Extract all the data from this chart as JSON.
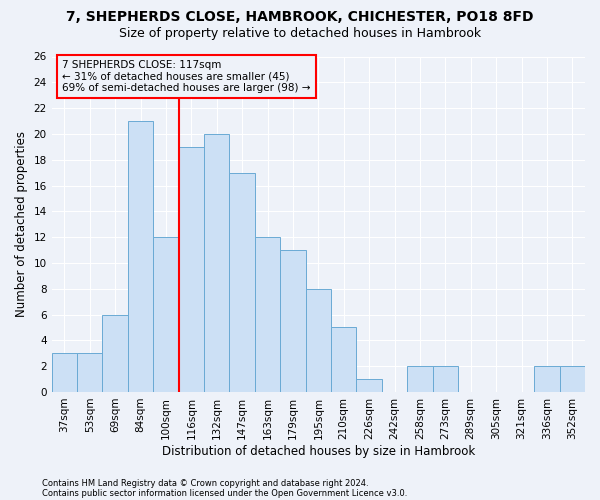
{
  "title1": "7, SHEPHERDS CLOSE, HAMBROOK, CHICHESTER, PO18 8FD",
  "title2": "Size of property relative to detached houses in Hambrook",
  "xlabel": "Distribution of detached houses by size in Hambrook",
  "ylabel": "Number of detached properties",
  "categories": [
    "37sqm",
    "53sqm",
    "69sqm",
    "84sqm",
    "100sqm",
    "116sqm",
    "132sqm",
    "147sqm",
    "163sqm",
    "179sqm",
    "195sqm",
    "210sqm",
    "226sqm",
    "242sqm",
    "258sqm",
    "273sqm",
    "289sqm",
    "305sqm",
    "321sqm",
    "336sqm",
    "352sqm"
  ],
  "values": [
    3,
    3,
    6,
    21,
    12,
    19,
    20,
    17,
    12,
    11,
    8,
    5,
    1,
    0,
    2,
    2,
    0,
    0,
    0,
    2,
    2
  ],
  "bar_color": "#cce0f5",
  "bar_edge_color": "#6aaad4",
  "red_line_index": 5,
  "annotation_line1": "7 SHEPHERDS CLOSE: 117sqm",
  "annotation_line2": "← 31% of detached houses are smaller (45)",
  "annotation_line3": "69% of semi-detached houses are larger (98) →",
  "footer1": "Contains HM Land Registry data © Crown copyright and database right 2024.",
  "footer2": "Contains public sector information licensed under the Open Government Licence v3.0.",
  "ylim": [
    0,
    26
  ],
  "yticks": [
    0,
    2,
    4,
    6,
    8,
    10,
    12,
    14,
    16,
    18,
    20,
    22,
    24,
    26
  ],
  "background_color": "#eef2f9",
  "grid_color": "#ffffff",
  "title1_fontsize": 10,
  "title2_fontsize": 9,
  "tick_fontsize": 7.5,
  "ylabel_fontsize": 8.5,
  "xlabel_fontsize": 8.5,
  "annotation_fontsize": 7.5,
  "footer_fontsize": 6.0
}
